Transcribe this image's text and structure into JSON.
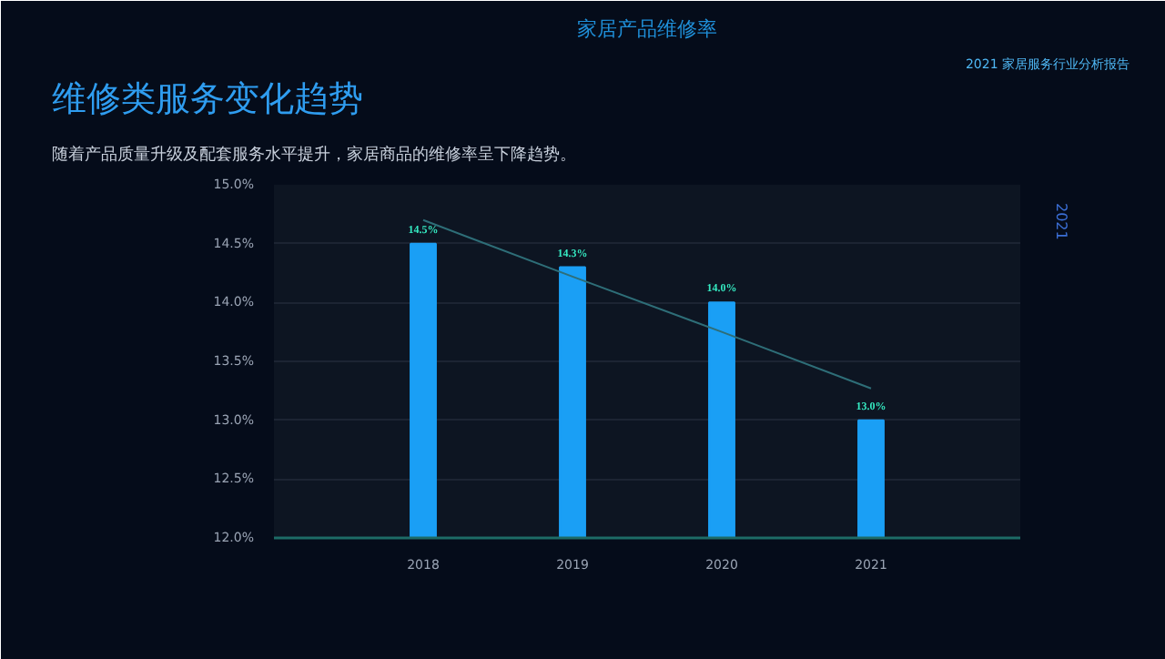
{
  "chart_data": {
    "type": "bar",
    "title": "家居产品维修率",
    "annotations": [
      "维修类服务变化趋势",
      "随着产品质量升级及配套服务水平提升，家居商品的维修率呈下降趋势。",
      "2021 家居服务行业分析报告",
      "2021"
    ],
    "categories": [
      "2018",
      "2019",
      "2020",
      "2021"
    ],
    "series": [
      {
        "color": "#1a9ff5",
        "values": [
          14.5,
          14.3,
          14.0,
          13.0
        ],
        "value_labels": [
          "14.5%",
          "14.3%",
          "14.0%",
          "13.0%"
        ]
      },
      {
        "type": "line",
        "color": "#2e6e78",
        "values": [
          14.7,
          14.22,
          13.75,
          13.27
        ]
      }
    ],
    "ylim": [
      12,
      15
    ],
    "yticks": [
      {
        "value": 12,
        "label": "12.0%"
      },
      {
        "value": 12.5,
        "label": "12.5%"
      },
      {
        "value": 13,
        "label": "13.0%"
      },
      {
        "value": 13.5,
        "label": "13.5%"
      },
      {
        "value": 14,
        "label": "14.0%"
      },
      {
        "value": 14.5,
        "label": "14.5%"
      },
      {
        "value": 15,
        "label": "15.0%"
      }
    ],
    "grid": "y"
  }
}
